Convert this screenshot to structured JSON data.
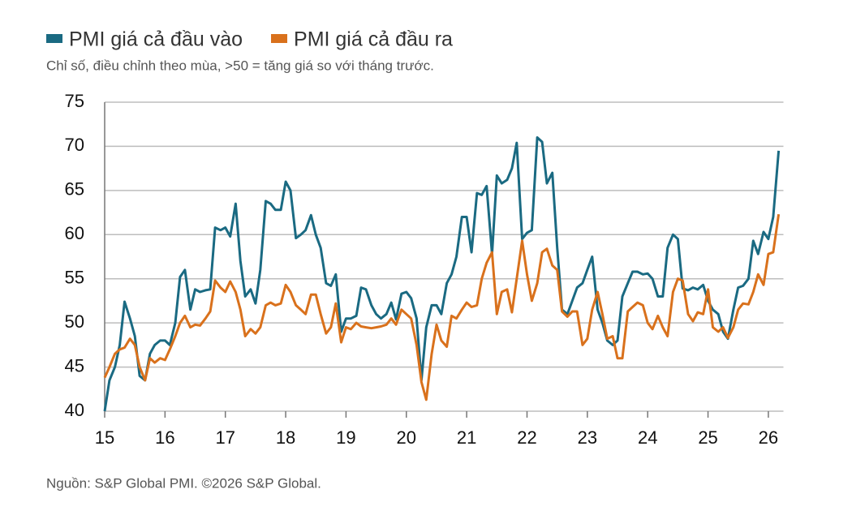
{
  "chart_data": {
    "type": "line",
    "subtitle": "Chỉ số, điều chỉnh theo mùa, >50 = tăng giá so với tháng trước.",
    "source": "Nguồn: S&P Global PMI. ©2026 S&P Global.",
    "x": [
      15,
      15.08,
      15.17,
      15.25,
      15.33,
      15.42,
      15.5,
      15.58,
      15.67,
      15.75,
      15.83,
      15.92,
      16,
      16.08,
      16.17,
      16.25,
      16.33,
      16.42,
      16.5,
      16.58,
      16.67,
      16.75,
      16.83,
      16.92,
      17,
      17.08,
      17.17,
      17.25,
      17.33,
      17.42,
      17.5,
      17.58,
      17.67,
      17.75,
      17.83,
      17.92,
      18,
      18.08,
      18.17,
      18.25,
      18.33,
      18.42,
      18.5,
      18.58,
      18.67,
      18.75,
      18.83,
      18.92,
      19,
      19.08,
      19.17,
      19.25,
      19.33,
      19.42,
      19.5,
      19.58,
      19.67,
      19.75,
      19.83,
      19.92,
      20,
      20.08,
      20.17,
      20.25,
      20.33,
      20.42,
      20.5,
      20.58,
      20.67,
      20.75,
      20.83,
      20.92,
      21,
      21.08,
      21.17,
      21.25,
      21.33,
      21.42,
      21.5,
      21.58,
      21.67,
      21.75,
      21.83,
      21.92,
      22,
      22.08,
      22.17,
      22.25,
      22.33,
      22.42,
      22.5,
      22.58,
      22.67,
      22.75,
      22.83,
      22.92,
      23,
      23.08,
      23.17,
      23.25,
      23.33,
      23.42,
      23.5,
      23.58,
      23.67,
      23.75,
      23.83,
      23.92,
      24,
      24.08,
      24.17,
      24.25,
      24.33,
      24.42,
      24.5,
      24.58,
      24.67,
      24.75,
      24.83,
      24.92,
      25,
      25.08,
      25.17,
      25.25,
      25.33,
      25.42,
      25.5,
      25.58,
      25.67,
      25.75,
      25.83,
      25.92,
      26,
      26.08,
      26.17
    ],
    "series": [
      {
        "name": "PMI giá cả đầu vào",
        "color": "#1a6a82",
        "values": [
          40,
          43.5,
          45,
          47.5,
          52.4,
          50.5,
          48.5,
          44,
          43.5,
          46.5,
          47.5,
          48,
          48,
          47.5,
          50,
          55.2,
          56,
          51.5,
          53.8,
          53.5,
          53.7,
          53.8,
          60.8,
          60.5,
          60.8,
          59.8,
          63.5,
          57,
          53,
          53.8,
          52.2,
          56,
          63.8,
          63.5,
          62.8,
          62.8,
          66,
          65,
          59.6,
          60,
          60.5,
          62.2,
          60,
          58.5,
          54.5,
          54.2,
          55.5,
          49,
          50.5,
          50.5,
          50.8,
          54,
          53.8,
          52,
          51,
          50.5,
          51,
          52.3,
          50.4,
          53.3,
          53.5,
          52.8,
          50.5,
          43.5,
          49.5,
          52,
          52,
          51,
          54.5,
          55.5,
          57.5,
          62,
          62,
          58,
          64.7,
          64.5,
          65.5,
          57.8,
          66.7,
          65.8,
          66.2,
          67.5,
          70.4,
          59.5,
          60.2,
          60.5,
          71,
          70.5,
          65.8,
          67,
          58.5,
          51.5,
          51,
          52.5,
          54,
          54.5,
          56,
          57.5,
          51.5,
          50,
          48,
          47.5,
          48,
          53,
          54.5,
          55.8,
          55.8,
          55.5,
          55.6,
          55,
          53,
          53,
          58.5,
          60,
          59.5,
          53.9,
          53.7,
          54,
          53.8,
          54.3,
          52.5,
          51.5,
          51,
          49,
          48.2,
          51.5,
          54,
          54.2,
          55,
          59.3,
          57.8,
          60.3,
          59.5,
          62,
          69.5
        ]
      },
      {
        "name": "PMI giá cả đầu ra",
        "color": "#d9711c",
        "values": [
          43.8,
          45,
          46.5,
          47,
          47.2,
          48.2,
          47.5,
          45,
          43.5,
          46,
          45.5,
          46,
          45.8,
          47,
          48.5,
          50,
          50.8,
          49.5,
          49.8,
          49.7,
          50.5,
          51.3,
          54.8,
          54,
          53.5,
          54.7,
          53.5,
          51.5,
          48.5,
          49.3,
          48.8,
          49.5,
          52,
          52.3,
          52,
          52.2,
          54.3,
          53.5,
          52,
          51.5,
          51,
          53.2,
          53.2,
          51,
          48.8,
          49.5,
          52.2,
          47.8,
          49.5,
          49.3,
          50,
          49.6,
          49.5,
          49.4,
          49.5,
          49.6,
          49.8,
          50.5,
          49.8,
          51.5,
          51,
          50.5,
          47.5,
          43.3,
          41.3,
          46.5,
          49.8,
          48,
          47.3,
          50.8,
          50.5,
          51.5,
          52.3,
          51.8,
          52,
          55,
          56.8,
          58,
          51,
          53.5,
          53.8,
          51.2,
          55,
          59.3,
          55.5,
          52.5,
          54.5,
          58,
          58.4,
          56.5,
          56,
          51.3,
          50.7,
          51.3,
          51.3,
          47.5,
          48.2,
          51.5,
          53.5,
          51,
          48.2,
          48.5,
          46,
          46,
          51.3,
          51.8,
          52.3,
          52,
          50,
          49.3,
          50.8,
          49.5,
          48.5,
          53.5,
          55,
          54.8,
          51,
          50.2,
          51.2,
          51,
          53.8,
          49.5,
          49,
          49.5,
          48.3,
          49.5,
          51.5,
          52.2,
          52.1,
          53.5,
          55.5,
          54.3,
          57.8,
          58,
          62.3
        ]
      }
    ],
    "xlim": [
      15,
      26.25
    ],
    "xticks": [
      15,
      16,
      17,
      18,
      19,
      20,
      21,
      22,
      23,
      24,
      25,
      26
    ],
    "ylim": [
      40,
      75
    ],
    "yticks": [
      40,
      45,
      50,
      55,
      60,
      65,
      70,
      75
    ],
    "grid": true
  }
}
